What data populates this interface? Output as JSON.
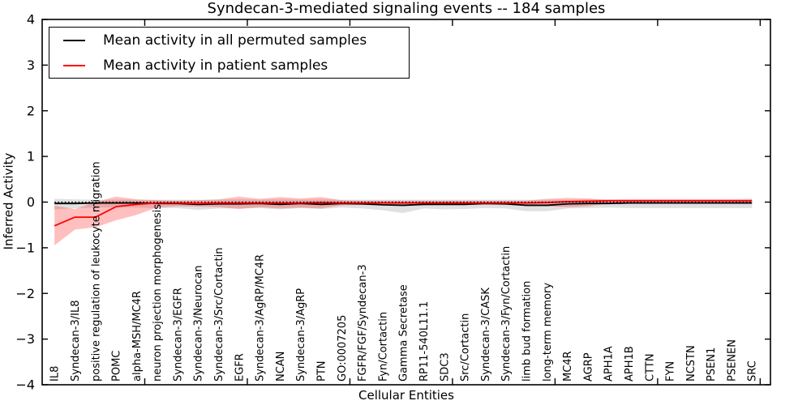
{
  "chart_data": {
    "type": "line",
    "title": "Syndecan-3-mediated signaling events -- 184 samples",
    "xlabel": "Cellular Entities",
    "ylabel": "Inferred Activity",
    "grid": false,
    "legend_position": "upper left",
    "ylim": [
      -4,
      4
    ],
    "yticks": [
      -4,
      -3,
      -2,
      -1,
      0,
      1,
      2,
      3,
      4
    ],
    "xlim": [
      0,
      35.5
    ],
    "x_offset": 0.6,
    "xtick_values": [
      5,
      10,
      15,
      20,
      25,
      30,
      35
    ],
    "reference_line_y": 0,
    "categories": [
      "IL8",
      "Syndecan-3/IL8",
      "positive regulation of leukocyte migration",
      "POMC",
      "alpha-MSH/MC4R",
      "neuron projection morphogenesis",
      "Syndecan-3/EGFR",
      "Syndecan-3/Neurocan",
      "Syndecan-3/Src/Cortactin",
      "EGFR",
      "Syndecan-3/AgRP/MC4R",
      "NCAN",
      "Syndecan-3/AgRP",
      "PTN",
      "GO:0007205",
      "FGFR/FGF/Syndecan-3",
      "Fyn/Cortactin",
      "Gamma Secretase",
      "RP11-540L11.1",
      "SDC3",
      "Src/Cortactin",
      "Syndecan-3/CASK",
      "Syndecan-3/Fyn/Cortactin",
      "limb bud formation",
      "long-term memory",
      "MC4R",
      "AGRP",
      "APH1A",
      "APH1B",
      "CTTN",
      "FYN",
      "NCSTN",
      "PSEN1",
      "PSENEN",
      "SRC"
    ],
    "series": [
      {
        "name": "Mean activity in all permuted samples",
        "color": "#000000",
        "line_width": 1.8,
        "band_color": "rgba(130,130,130,0.25)",
        "values": [
          -0.03,
          -0.03,
          -0.02,
          -0.02,
          -0.02,
          -0.03,
          -0.03,
          -0.05,
          -0.04,
          -0.04,
          -0.03,
          -0.05,
          -0.03,
          -0.05,
          -0.03,
          -0.04,
          -0.06,
          -0.07,
          -0.05,
          -0.05,
          -0.05,
          -0.03,
          -0.04,
          -0.07,
          -0.07,
          -0.04,
          -0.03,
          -0.03,
          -0.02,
          -0.02,
          -0.02,
          -0.02,
          -0.02,
          -0.02,
          -0.02
        ],
        "band_upper": [
          0.07,
          0.06,
          0.05,
          0.05,
          0.05,
          0.05,
          0.05,
          0.05,
          0.05,
          0.06,
          0.05,
          0.06,
          0.05,
          0.06,
          0.05,
          0.05,
          0.05,
          0.05,
          0.05,
          0.05,
          0.05,
          0.05,
          0.05,
          0.05,
          0.05,
          0.05,
          0.06,
          0.06,
          0.07,
          0.07,
          0.07,
          0.07,
          0.07,
          0.07,
          0.08
        ],
        "band_lower": [
          -0.16,
          -0.13,
          -0.12,
          -0.12,
          -0.12,
          -0.13,
          -0.13,
          -0.17,
          -0.14,
          -0.14,
          -0.13,
          -0.16,
          -0.13,
          -0.15,
          -0.12,
          -0.14,
          -0.18,
          -0.24,
          -0.14,
          -0.16,
          -0.15,
          -0.13,
          -0.14,
          -0.2,
          -0.2,
          -0.14,
          -0.13,
          -0.12,
          -0.13,
          -0.13,
          -0.13,
          -0.13,
          -0.13,
          -0.13,
          -0.13
        ]
      },
      {
        "name": "Mean activity in patient samples",
        "color": "#ff0000",
        "line_width": 1.8,
        "band_color": "rgba(255,0,0,0.25)",
        "values": [
          -0.52,
          -0.33,
          -0.33,
          -0.1,
          -0.05,
          -0.02,
          -0.02,
          -0.03,
          -0.02,
          -0.02,
          -0.02,
          -0.02,
          -0.02,
          -0.01,
          -0.02,
          -0.02,
          -0.02,
          -0.02,
          -0.02,
          -0.02,
          -0.02,
          -0.02,
          -0.02,
          -0.02,
          -0.01,
          0.01,
          0.02,
          0.03,
          0.03,
          0.03,
          0.03,
          0.03,
          0.03,
          0.03,
          0.03
        ],
        "band_upper": [
          -0.08,
          -0.15,
          0.0,
          0.12,
          0.06,
          0.04,
          0.03,
          0.04,
          0.06,
          0.12,
          0.07,
          0.11,
          0.08,
          0.11,
          0.04,
          0.03,
          0.03,
          0.03,
          0.03,
          0.03,
          0.03,
          0.03,
          0.03,
          0.03,
          0.07,
          0.09,
          0.08,
          0.05,
          0.05,
          0.05,
          0.05,
          0.05,
          0.05,
          0.05,
          0.05
        ],
        "band_lower": [
          -0.95,
          -0.6,
          -0.55,
          -0.4,
          -0.28,
          -0.12,
          -0.09,
          -0.1,
          -0.11,
          -0.15,
          -0.11,
          -0.14,
          -0.12,
          -0.14,
          -0.07,
          -0.06,
          -0.06,
          -0.07,
          -0.06,
          -0.06,
          -0.06,
          -0.06,
          -0.06,
          -0.06,
          -0.09,
          -0.11,
          -0.09,
          -0.03,
          -0.03,
          -0.03,
          -0.03,
          -0.03,
          -0.03,
          -0.03,
          -0.03
        ]
      }
    ]
  }
}
